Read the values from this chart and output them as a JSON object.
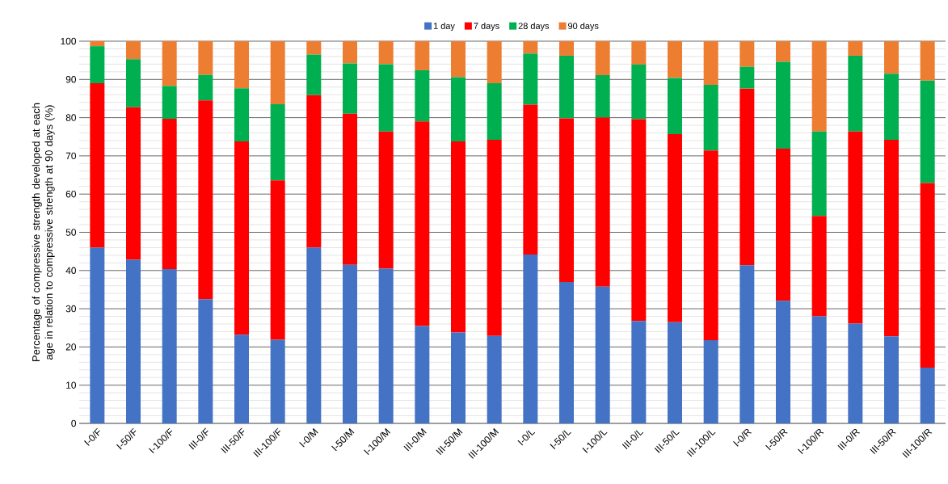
{
  "chart_data": {
    "type": "bar",
    "stacked": true,
    "ylabel": "Percentage of compressive strength developed at each age in relation to compressive strength at 90 days (%)",
    "categories": [
      "I-0/F",
      "I-50/F",
      "I-100/F",
      "III-0/F",
      "III-50/F",
      "III-100/F",
      "I-0/M",
      "I-50/M",
      "I-100/M",
      "III-0/M",
      "III-50/M",
      "III-100/M",
      "I-0/L",
      "I-50/L",
      "I-100/L",
      "III-0/L",
      "III-50/L",
      "III-100/L",
      "I-0/R",
      "I-50/R",
      "I-100/R",
      "III-0/R",
      "III-50/R",
      "III-100/R"
    ],
    "series": [
      {
        "name": "1 day",
        "color": "#4472c4",
        "values": [
          46,
          42.8,
          40.4,
          32.5,
          23.2,
          21.9,
          46,
          41.5,
          40.5,
          25.5,
          23.8,
          22.9,
          44.2,
          37,
          35.8,
          26.8,
          26.5,
          21.8,
          41.4,
          32.1,
          28,
          26.1,
          22.8,
          14.6
        ]
      },
      {
        "name": "7 days",
        "color": "#ff0000",
        "values": [
          43,
          39.9,
          39.3,
          52,
          50.6,
          41.7,
          39.9,
          39.5,
          35.9,
          53.5,
          50,
          51.3,
          39.2,
          42.8,
          44.2,
          52.8,
          49.2,
          49.6,
          46.2,
          39.8,
          26.3,
          50.3,
          51.4,
          48.3
        ]
      },
      {
        "name": "28 days",
        "color": "#00b050",
        "values": [
          9.7,
          12.6,
          8.6,
          6.7,
          13.9,
          19.9,
          10.6,
          13.2,
          17.6,
          13.4,
          16.8,
          14.8,
          13.4,
          16.4,
          11.1,
          14.3,
          14.7,
          17.2,
          5.7,
          22.7,
          22.1,
          19.8,
          17.3,
          26.8
        ]
      },
      {
        "name": "90 days",
        "color": "#ed7d31",
        "values": [
          1.3,
          4.7,
          11.7,
          8.8,
          12.3,
          16.5,
          3.5,
          5.8,
          6,
          7.6,
          9.4,
          11,
          3.2,
          3.8,
          8.9,
          6.1,
          9.6,
          11.4,
          6.7,
          5.4,
          23.6,
          3.8,
          8.5,
          10.3
        ]
      }
    ],
    "ylim": [
      0,
      100
    ],
    "yticks": [
      0,
      10,
      20,
      30,
      40,
      50,
      60,
      70,
      80,
      90,
      100
    ],
    "grid": true,
    "legend": "top"
  }
}
